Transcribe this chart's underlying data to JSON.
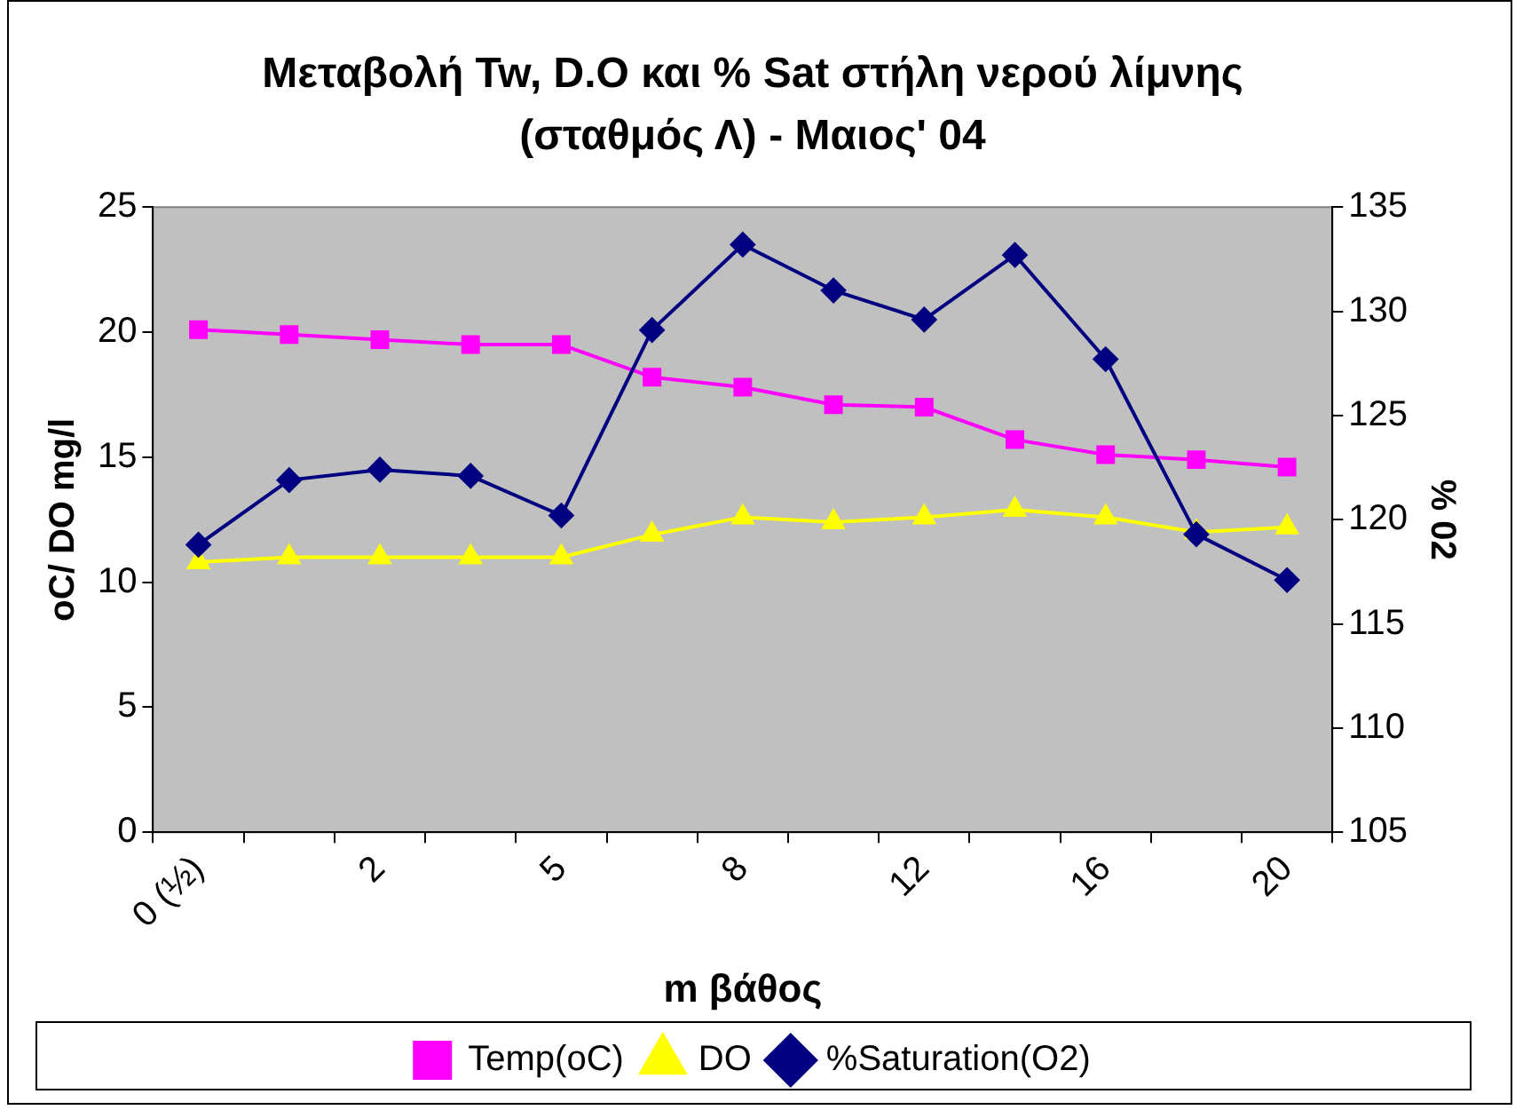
{
  "chart_data": {
    "type": "line",
    "title": "Μεταβολή Tw, D.O και % Sat στήλη νερού λίμνης (σταθμός Λ) - Μαιος' 04",
    "xlabel": "m βάθος",
    "ylabel": "oC/ DO mg/l",
    "y2label": "% 02",
    "categories": [
      "0 (½)",
      null,
      "2",
      null,
      "5",
      null,
      "8",
      null,
      "12",
      null,
      "16",
      null,
      "20"
    ],
    "series": [
      {
        "name": "Temp(oC)",
        "color": "#ff00ff",
        "marker": "square",
        "values": [
          20.1,
          19.9,
          19.7,
          19.5,
          19.5,
          18.2,
          17.8,
          17.1,
          17.0,
          15.7,
          15.1,
          14.9,
          14.6
        ]
      },
      {
        "name": "DO",
        "color": "#ffff00",
        "marker": "triangle",
        "values": [
          10.8,
          11.0,
          11.0,
          11.0,
          11.0,
          11.9,
          12.6,
          12.4,
          12.6,
          12.9,
          12.6,
          12.0,
          12.2
        ]
      },
      {
        "name": "%Saturation(O2)",
        "color": "#000080",
        "marker": "diamond",
        "axis": "y2",
        "values": [
          118.8,
          121.9,
          122.4,
          122.1,
          120.2,
          129.1,
          133.2,
          131.0,
          129.6,
          132.7,
          127.7,
          119.3,
          117.1
        ]
      }
    ],
    "ylim": [
      0,
      25
    ],
    "yticks": [
      0,
      5,
      10,
      15,
      20,
      25
    ],
    "y2lim": [
      105,
      135
    ],
    "y2ticks": [
      105,
      110,
      115,
      120,
      125,
      130,
      135
    ],
    "grid": false,
    "legend": "bottom"
  }
}
